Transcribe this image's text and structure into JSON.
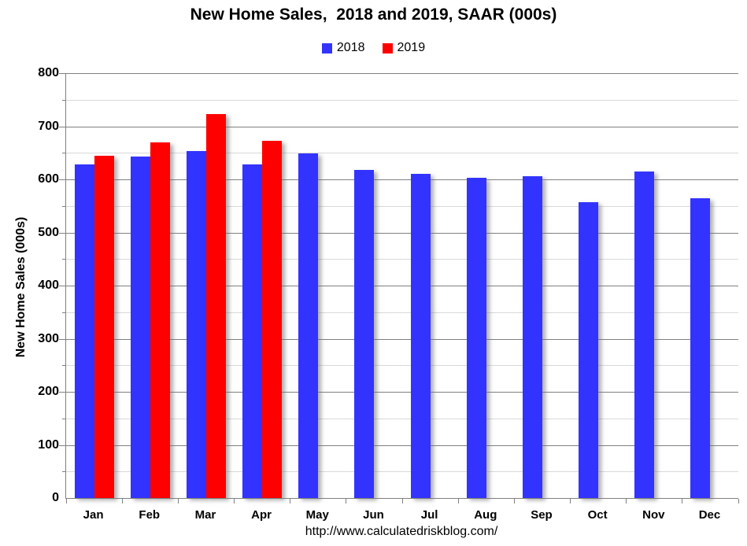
{
  "footer_url": "http://www.calculatedriskblog.com/",
  "chart_data": {
    "type": "bar",
    "title": "New Home Sales,  2018 and 2019, SAAR (000s)",
    "xlabel": "",
    "ylabel": "New Home Sales (000s)",
    "categories": [
      "Jan",
      "Feb",
      "Mar",
      "Apr",
      "May",
      "Jun",
      "Jul",
      "Aug",
      "Sep",
      "Oct",
      "Nov",
      "Dec"
    ],
    "series": [
      {
        "name": "2018",
        "color": "#3333FF",
        "values": [
          628,
          643,
          653,
          628,
          649,
          618,
          610,
          603,
          606,
          557,
          615,
          564
        ]
      },
      {
        "name": "2019",
        "color": "#FF0000",
        "values": [
          644,
          669,
          723,
          673,
          null,
          null,
          null,
          null,
          null,
          null,
          null,
          null
        ]
      }
    ],
    "ylim": [
      0,
      800
    ],
    "ytick_interval": 100,
    "minor_tick_interval": 50,
    "grid": true,
    "legend_position": "top",
    "axis_color": "#808080",
    "major_grid_color": "#808080",
    "minor_grid_color": "#d9d9d9"
  }
}
